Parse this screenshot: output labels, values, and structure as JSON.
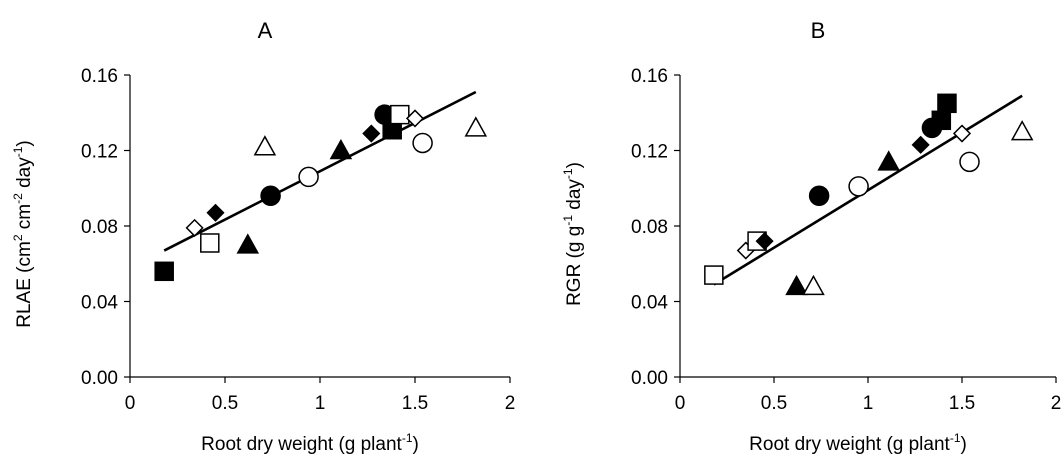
{
  "chart_data": [
    {
      "type": "scatter",
      "title": "A",
      "xlabel": {
        "base": "Root dry weight (g plant",
        "sup": "-1",
        "end": ")"
      },
      "ylabel": {
        "parts": [
          {
            "t": "RLAE (cm"
          },
          {
            "t": "2",
            "sup": true
          },
          {
            "t": " cm"
          },
          {
            "t": "-2",
            "sup": true
          },
          {
            "t": " day"
          },
          {
            "t": "-1",
            "sup": true
          },
          {
            "t": ")"
          }
        ]
      },
      "xlim": [
        0,
        2
      ],
      "ylim": [
        0,
        0.16
      ],
      "xticks": [
        "0",
        "0.5",
        "1",
        "1.5",
        "2"
      ],
      "yticks": [
        "0.00",
        "0.04",
        "0.08",
        "0.12",
        "0.16"
      ],
      "xtick_values": [
        0,
        0.5,
        1,
        1.5,
        2
      ],
      "ytick_values": [
        0,
        0.04,
        0.08,
        0.12,
        0.16
      ],
      "grid": false,
      "trendline": {
        "x": [
          0.18,
          1.82
        ],
        "y": [
          0.067,
          0.151
        ]
      },
      "points": [
        {
          "x": 0.18,
          "y": 0.056,
          "marker": "square",
          "filled": true
        },
        {
          "x": 0.34,
          "y": 0.079,
          "marker": "diamond",
          "filled": false
        },
        {
          "x": 0.42,
          "y": 0.071,
          "marker": "square",
          "filled": false
        },
        {
          "x": 0.45,
          "y": 0.087,
          "marker": "diamond",
          "filled": true
        },
        {
          "x": 0.62,
          "y": 0.07,
          "marker": "triangle",
          "filled": true
        },
        {
          "x": 0.71,
          "y": 0.122,
          "marker": "triangle",
          "filled": false
        },
        {
          "x": 0.74,
          "y": 0.096,
          "marker": "circle",
          "filled": true
        },
        {
          "x": 0.94,
          "y": 0.106,
          "marker": "circle",
          "filled": false
        },
        {
          "x": 1.11,
          "y": 0.12,
          "marker": "triangle",
          "filled": true
        },
        {
          "x": 1.27,
          "y": 0.129,
          "marker": "diamond",
          "filled": true
        },
        {
          "x": 1.34,
          "y": 0.139,
          "marker": "circle",
          "filled": true
        },
        {
          "x": 1.38,
          "y": 0.131,
          "marker": "square",
          "filled": true
        },
        {
          "x": 1.42,
          "y": 0.139,
          "marker": "square",
          "filled": false
        },
        {
          "x": 1.5,
          "y": 0.137,
          "marker": "diamond",
          "filled": false
        },
        {
          "x": 1.54,
          "y": 0.124,
          "marker": "circle",
          "filled": false
        },
        {
          "x": 1.82,
          "y": 0.132,
          "marker": "triangle",
          "filled": false
        }
      ]
    },
    {
      "type": "scatter",
      "title": "B",
      "xlabel": {
        "base": "Root dry weight (g plant",
        "sup": "-1",
        "end": ")"
      },
      "ylabel": {
        "parts": [
          {
            "t": "RGR (g g"
          },
          {
            "t": "-1",
            "sup": true
          },
          {
            "t": " day"
          },
          {
            "t": "-1",
            "sup": true
          },
          {
            "t": ")"
          }
        ]
      },
      "xlim": [
        0,
        2
      ],
      "ylim": [
        0,
        0.16
      ],
      "xticks": [
        "0",
        "0.5",
        "1",
        "1.5",
        "2"
      ],
      "yticks": [
        "0.00",
        "0.04",
        "0.08",
        "0.12",
        "0.16"
      ],
      "xtick_values": [
        0,
        0.5,
        1,
        1.5,
        2
      ],
      "ytick_values": [
        0,
        0.04,
        0.08,
        0.12,
        0.16
      ],
      "grid": false,
      "trendline": {
        "x": [
          0.18,
          1.82
        ],
        "y": [
          0.049,
          0.149
        ]
      },
      "points": [
        {
          "x": 0.18,
          "y": 0.054,
          "marker": "square",
          "filled": false
        },
        {
          "x": 0.35,
          "y": 0.067,
          "marker": "diamond",
          "filled": false
        },
        {
          "x": 0.41,
          "y": 0.072,
          "marker": "square",
          "filled": false
        },
        {
          "x": 0.45,
          "y": 0.072,
          "marker": "diamond",
          "filled": true
        },
        {
          "x": 0.62,
          "y": 0.048,
          "marker": "triangle",
          "filled": true
        },
        {
          "x": 0.71,
          "y": 0.048,
          "marker": "triangle",
          "filled": false
        },
        {
          "x": 0.74,
          "y": 0.096,
          "marker": "circle",
          "filled": true
        },
        {
          "x": 0.95,
          "y": 0.101,
          "marker": "circle",
          "filled": false
        },
        {
          "x": 1.11,
          "y": 0.114,
          "marker": "triangle",
          "filled": true
        },
        {
          "x": 1.28,
          "y": 0.123,
          "marker": "diamond",
          "filled": true
        },
        {
          "x": 1.34,
          "y": 0.132,
          "marker": "circle",
          "filled": true
        },
        {
          "x": 1.39,
          "y": 0.136,
          "marker": "square",
          "filled": true
        },
        {
          "x": 1.42,
          "y": 0.145,
          "marker": "square",
          "filled": true
        },
        {
          "x": 1.5,
          "y": 0.129,
          "marker": "diamond",
          "filled": false
        },
        {
          "x": 1.54,
          "y": 0.114,
          "marker": "circle",
          "filled": false
        },
        {
          "x": 1.82,
          "y": 0.13,
          "marker": "triangle",
          "filled": false
        }
      ]
    }
  ]
}
